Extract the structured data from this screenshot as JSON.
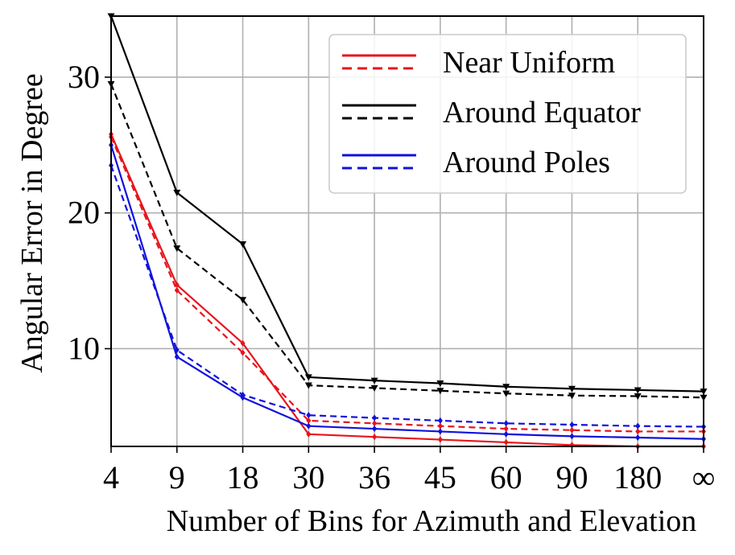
{
  "chart_data": {
    "type": "line",
    "categories": [
      "4",
      "9",
      "18",
      "30",
      "36",
      "45",
      "60",
      "90",
      "180",
      "∞"
    ],
    "xlabel": "Number of Bins for Azimuth and Elevation",
    "ylabel": "Angular Error in Degree",
    "ylim": [
      2.8,
      34.5
    ],
    "yticks": [
      10,
      20,
      30
    ],
    "grid": true,
    "legend_position": "top-right",
    "series": [
      {
        "name": "Near Uniform",
        "color": "#e8141b",
        "style": "solid",
        "values": [
          25.8,
          14.7,
          10.4,
          3.7,
          3.5,
          3.3,
          3.1,
          2.9,
          2.8,
          2.8
        ]
      },
      {
        "name": "Near Uniform",
        "color": "#e8141b",
        "style": "dashed",
        "values": [
          25.6,
          14.3,
          9.7,
          4.7,
          4.5,
          4.3,
          4.1,
          4.0,
          3.9,
          3.9
        ]
      },
      {
        "name": "Around Equator",
        "color": "#000000",
        "style": "solid",
        "values": [
          34.5,
          21.5,
          17.7,
          7.9,
          7.65,
          7.45,
          7.2,
          7.05,
          6.95,
          6.85
        ]
      },
      {
        "name": "Around Equator",
        "color": "#000000",
        "style": "dashed",
        "values": [
          29.5,
          17.4,
          13.6,
          7.3,
          7.1,
          6.9,
          6.7,
          6.55,
          6.5,
          6.4
        ]
      },
      {
        "name": "Around Poles",
        "color": "#1111dd",
        "style": "solid",
        "values": [
          25.0,
          9.4,
          6.4,
          4.3,
          4.1,
          3.9,
          3.7,
          3.55,
          3.45,
          3.35
        ]
      },
      {
        "name": "Around Poles",
        "color": "#1111dd",
        "style": "dashed",
        "values": [
          23.5,
          9.9,
          6.6,
          5.1,
          4.9,
          4.7,
          4.5,
          4.4,
          4.3,
          4.25
        ]
      }
    ],
    "legend": [
      {
        "label": "Near Uniform",
        "color": "#e8141b"
      },
      {
        "label": "Around Equator",
        "color": "#000000"
      },
      {
        "label": "Around Poles",
        "color": "#1111dd"
      }
    ]
  }
}
